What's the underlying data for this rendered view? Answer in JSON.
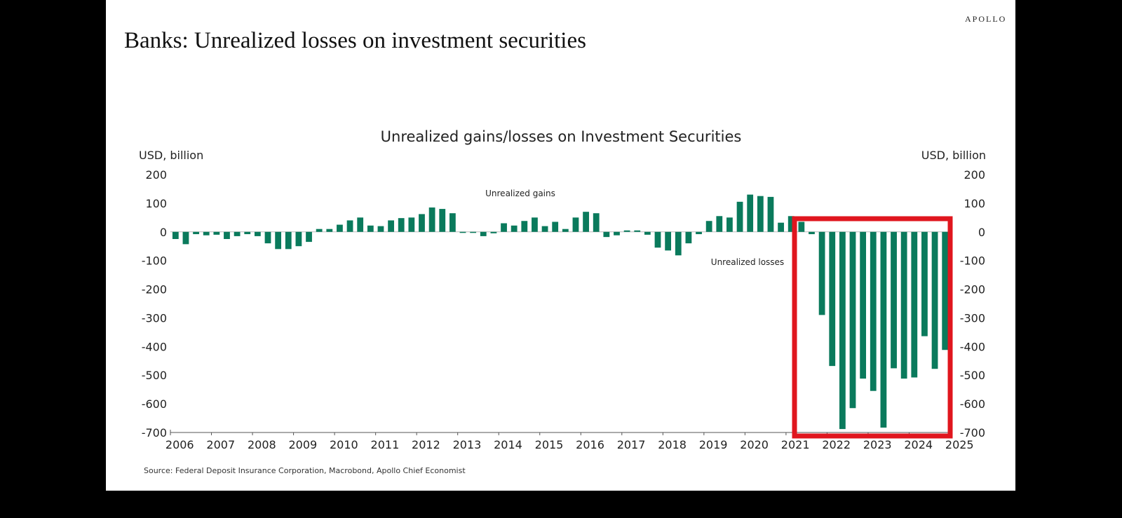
{
  "brand": "APOLLO",
  "headline": "Banks: Unrealized losses on investment securities",
  "source": "Source: Federal Deposit Insurance Corporation, Macrobond, Apollo Chief Economist",
  "colors": {
    "bar": "#0a7a5c",
    "highlight": "#e0161e",
    "axis": "#555555"
  },
  "chart_data": {
    "type": "bar",
    "title": "Unrealized gains/losses on Investment Securities",
    "ylabel_left": "USD, billion",
    "ylabel_right": "USD, billion",
    "ylim": [
      -700,
      200
    ],
    "yticks": [
      200,
      100,
      0,
      -100,
      -200,
      -300,
      -400,
      -500,
      -600,
      -700
    ],
    "xticks": [
      "2006",
      "2007",
      "2008",
      "2009",
      "2010",
      "2011",
      "2012",
      "2013",
      "2014",
      "2015",
      "2016",
      "2017",
      "2018",
      "2019",
      "2020",
      "2021",
      "2022",
      "2023",
      "2024",
      "2025"
    ],
    "x_start": 2006,
    "frequency": "quarterly",
    "annotations": [
      "Unrealized gains",
      "Unrealized losses"
    ],
    "highlight_range": [
      "2021Q4",
      "2024Q3"
    ],
    "series": [
      {
        "values": [
          -25,
          -43,
          -8,
          -12,
          -10,
          -25,
          -15,
          -8,
          -15,
          -40,
          -60,
          -60,
          -50,
          -35,
          10,
          10,
          25,
          40,
          50,
          22,
          20,
          40,
          48,
          50,
          62,
          85,
          80,
          65,
          -2,
          -3,
          -15,
          -5,
          30,
          22,
          38,
          50,
          20,
          35,
          10,
          50,
          70,
          65,
          -18,
          -12,
          5,
          5,
          -10,
          -55,
          -65,
          -82,
          -40,
          -8,
          38,
          55,
          50,
          105,
          130,
          125,
          122,
          32,
          55,
          35,
          -8,
          -290,
          -468,
          -688,
          -615,
          -512,
          -555,
          -683,
          -476,
          -512,
          -508,
          -364,
          -478,
          -412
        ]
      }
    ]
  }
}
